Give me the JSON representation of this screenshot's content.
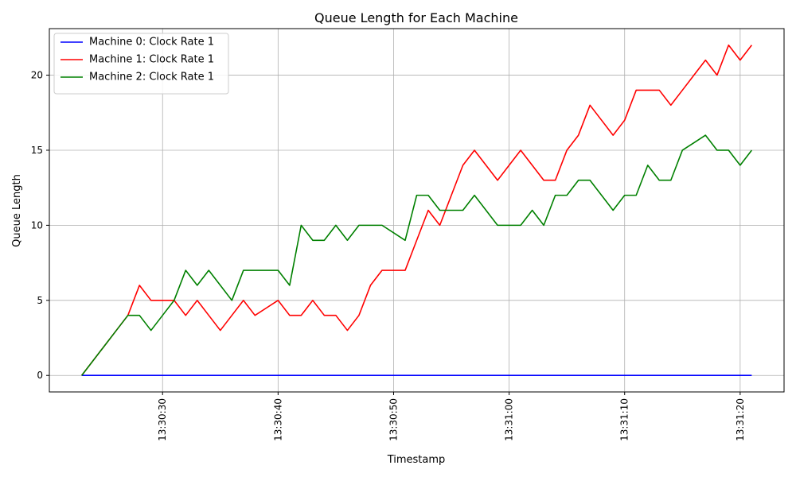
{
  "chart_data": {
    "type": "line",
    "title": "Queue Length for Each Machine",
    "xlabel": "Timestamp",
    "ylabel": "Queue Length",
    "grid": true,
    "legend_position": "top-left",
    "x_start": "13:30:23",
    "x": [
      "13:30:23",
      "13:30:24",
      "13:30:25",
      "13:30:26",
      "13:30:27",
      "13:30:28",
      "13:30:29",
      "13:30:30",
      "13:30:31",
      "13:30:32",
      "13:30:33",
      "13:30:34",
      "13:30:35",
      "13:30:36",
      "13:30:37",
      "13:30:38",
      "13:30:39",
      "13:30:40",
      "13:30:41",
      "13:30:42",
      "13:30:43",
      "13:30:44",
      "13:30:45",
      "13:30:46",
      "13:30:47",
      "13:30:48",
      "13:30:49",
      "13:30:50",
      "13:30:51",
      "13:30:52",
      "13:30:53",
      "13:30:54",
      "13:30:55",
      "13:30:56",
      "13:30:57",
      "13:30:58",
      "13:30:59",
      "13:31:00",
      "13:31:01",
      "13:31:02",
      "13:31:03",
      "13:31:04",
      "13:31:05",
      "13:31:06",
      "13:31:07",
      "13:31:08",
      "13:31:09",
      "13:31:10",
      "13:31:11",
      "13:31:12",
      "13:31:13",
      "13:31:14",
      "13:31:15",
      "13:31:16",
      "13:31:17",
      "13:31:18",
      "13:31:19",
      "13:31:20",
      "13:31:21"
    ],
    "xlim": [
      "13:30:20.2",
      "13:31:23.8"
    ],
    "ylim": [
      -1.1,
      23.1
    ],
    "xticks": [
      "13:30:30",
      "13:30:40",
      "13:30:50",
      "13:31:00",
      "13:31:10",
      "13:31:20"
    ],
    "yticks": [
      0,
      5,
      10,
      15,
      20
    ],
    "series": [
      {
        "name": "Machine 0: Clock Rate 1",
        "color": "#0000ff",
        "values": [
          0,
          0,
          0,
          0,
          0,
          0,
          0,
          0,
          0,
          0,
          0,
          0,
          0,
          0,
          0,
          0,
          0,
          0,
          0,
          0,
          0,
          0,
          0,
          0,
          0,
          0,
          0,
          0,
          0,
          0,
          0,
          0,
          0,
          0,
          0,
          0,
          0,
          0,
          0,
          0,
          0,
          0,
          0,
          0,
          0,
          0,
          0,
          0,
          0,
          0,
          0,
          0,
          0,
          0,
          0,
          0,
          0,
          0,
          0
        ]
      },
      {
        "name": "Machine 1: Clock Rate 1",
        "color": "#ff0000",
        "values": [
          0,
          1,
          2,
          3,
          4,
          6,
          5,
          5,
          5,
          4,
          5,
          4,
          3,
          4,
          5,
          4,
          4.5,
          5,
          4,
          4,
          5,
          4,
          4,
          3,
          4,
          6,
          7,
          7,
          7,
          9,
          11,
          10,
          12,
          14,
          15,
          14,
          13,
          14,
          15,
          14,
          13,
          13,
          15,
          16,
          18,
          17,
          16,
          17,
          19,
          19,
          19,
          18,
          19,
          20,
          21,
          20,
          22,
          21,
          22
        ]
      },
      {
        "name": "Machine 2: Clock Rate 1",
        "color": "#008000",
        "values": [
          0,
          1,
          2,
          3,
          4,
          4,
          3,
          4,
          5,
          7,
          6,
          7,
          6,
          5,
          7,
          7,
          7,
          7,
          6,
          10,
          9,
          9,
          10,
          9,
          10,
          10,
          10,
          9.5,
          9,
          12,
          12,
          11,
          11,
          11,
          12,
          11,
          10,
          10,
          10,
          11,
          10,
          12,
          12,
          13,
          13,
          12,
          11,
          12,
          12,
          14,
          13,
          13,
          15,
          15.5,
          16,
          15,
          15,
          14,
          15
        ]
      }
    ]
  }
}
